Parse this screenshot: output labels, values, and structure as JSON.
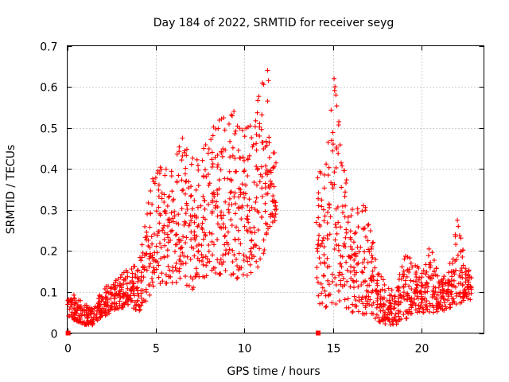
{
  "chart_data": {
    "type": "scatter",
    "title": "Day 184 of 2022, SRMTID for receiver seyg",
    "xlabel": "GPS time / hours",
    "ylabel": "SRMTID / TECUs",
    "xlim": [
      0,
      23.5
    ],
    "ylim": [
      0,
      0.7
    ],
    "xticks": [
      0,
      5,
      10,
      15,
      20
    ],
    "xtick_labels": [
      "0",
      "5",
      "10",
      "15",
      "20"
    ],
    "yticks": [
      0,
      0.1,
      0.2,
      0.3,
      0.4,
      0.5,
      0.6,
      0.7
    ],
    "ytick_labels": [
      "0",
      "0.1",
      "0.2",
      "0.3",
      "0.4",
      "0.5",
      "0.6",
      "0.7"
    ],
    "grid": true,
    "marker": "plus",
    "color": "#ff0000",
    "zero_markers": [
      {
        "x": 0.05,
        "y": 0.0
      },
      {
        "x": 14.15,
        "y": 0.0
      }
    ],
    "gaps": [
      [
        11.8,
        14.0
      ]
    ],
    "series": [
      {
        "name": "SRMTID",
        "envelope": [
          {
            "x": 0.0,
            "min": 0.04,
            "max": 0.1
          },
          {
            "x": 0.5,
            "min": 0.03,
            "max": 0.09
          },
          {
            "x": 1.0,
            "min": 0.02,
            "max": 0.07
          },
          {
            "x": 1.5,
            "min": 0.02,
            "max": 0.06
          },
          {
            "x": 2.0,
            "min": 0.04,
            "max": 0.11
          },
          {
            "x": 2.5,
            "min": 0.05,
            "max": 0.12
          },
          {
            "x": 3.0,
            "min": 0.06,
            "max": 0.14
          },
          {
            "x": 3.5,
            "min": 0.07,
            "max": 0.16
          },
          {
            "x": 4.0,
            "min": 0.05,
            "max": 0.17
          },
          {
            "x": 4.5,
            "min": 0.08,
            "max": 0.3
          },
          {
            "x": 5.0,
            "min": 0.12,
            "max": 0.42
          },
          {
            "x": 5.5,
            "min": 0.12,
            "max": 0.4
          },
          {
            "x": 6.0,
            "min": 0.12,
            "max": 0.41
          },
          {
            "x": 6.5,
            "min": 0.13,
            "max": 0.48
          },
          {
            "x": 7.0,
            "min": 0.1,
            "max": 0.43
          },
          {
            "x": 7.5,
            "min": 0.14,
            "max": 0.42
          },
          {
            "x": 8.0,
            "min": 0.13,
            "max": 0.5
          },
          {
            "x": 8.5,
            "min": 0.14,
            "max": 0.52
          },
          {
            "x": 9.0,
            "min": 0.15,
            "max": 0.53
          },
          {
            "x": 9.5,
            "min": 0.13,
            "max": 0.55
          },
          {
            "x": 10.0,
            "min": 0.14,
            "max": 0.5
          },
          {
            "x": 10.5,
            "min": 0.14,
            "max": 0.51
          },
          {
            "x": 11.0,
            "min": 0.18,
            "max": 0.64
          },
          {
            "x": 11.5,
            "min": 0.27,
            "max": 0.44
          },
          {
            "x": 11.8,
            "min": 0.27,
            "max": 0.44
          },
          {
            "x": 14.0,
            "min": 0.08,
            "max": 0.4
          },
          {
            "x": 14.5,
            "min": 0.06,
            "max": 0.4
          },
          {
            "x": 15.0,
            "min": 0.07,
            "max": 0.62
          },
          {
            "x": 15.5,
            "min": 0.07,
            "max": 0.46
          },
          {
            "x": 16.0,
            "min": 0.05,
            "max": 0.3
          },
          {
            "x": 16.5,
            "min": 0.05,
            "max": 0.32
          },
          {
            "x": 17.0,
            "min": 0.04,
            "max": 0.3
          },
          {
            "x": 17.5,
            "min": 0.03,
            "max": 0.15
          },
          {
            "x": 18.0,
            "min": 0.02,
            "max": 0.12
          },
          {
            "x": 18.5,
            "min": 0.02,
            "max": 0.1
          },
          {
            "x": 19.0,
            "min": 0.03,
            "max": 0.19
          },
          {
            "x": 19.5,
            "min": 0.05,
            "max": 0.18
          },
          {
            "x": 20.0,
            "min": 0.05,
            "max": 0.15
          },
          {
            "x": 20.5,
            "min": 0.05,
            "max": 0.21
          },
          {
            "x": 21.0,
            "min": 0.05,
            "max": 0.13
          },
          {
            "x": 21.5,
            "min": 0.06,
            "max": 0.15
          },
          {
            "x": 22.0,
            "min": 0.07,
            "max": 0.28
          },
          {
            "x": 22.5,
            "min": 0.08,
            "max": 0.16
          },
          {
            "x": 22.8,
            "min": 0.08,
            "max": 0.15
          }
        ]
      }
    ],
    "notable_points": [
      {
        "x": 11.3,
        "y": 0.64
      },
      {
        "x": 11.35,
        "y": 0.615
      },
      {
        "x": 11.3,
        "y": 0.565
      },
      {
        "x": 15.05,
        "y": 0.62
      },
      {
        "x": 15.1,
        "y": 0.6
      },
      {
        "x": 15.15,
        "y": 0.58
      },
      {
        "x": 9.4,
        "y": 0.54
      },
      {
        "x": 10.85,
        "y": 0.51
      },
      {
        "x": 6.5,
        "y": 0.475
      },
      {
        "x": 22.0,
        "y": 0.275
      },
      {
        "x": 22.05,
        "y": 0.26
      },
      {
        "x": 20.4,
        "y": 0.205
      }
    ]
  }
}
